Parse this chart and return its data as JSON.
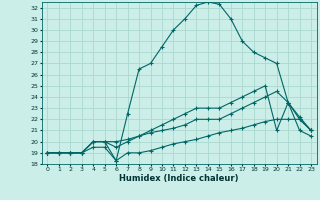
{
  "xlabel": "Humidex (Indice chaleur)",
  "background_color": "#cceee8",
  "grid_color": "#aad8d0",
  "line_color": "#006666",
  "xlim": [
    -0.5,
    23.5
  ],
  "ylim": [
    18,
    32.5
  ],
  "xticks": [
    0,
    1,
    2,
    3,
    4,
    5,
    6,
    7,
    8,
    9,
    10,
    11,
    12,
    13,
    14,
    15,
    16,
    17,
    18,
    19,
    20,
    21,
    22,
    23
  ],
  "yticks": [
    18,
    19,
    20,
    21,
    22,
    23,
    24,
    25,
    26,
    27,
    28,
    29,
    30,
    31,
    32
  ],
  "line1_x": [
    0,
    1,
    2,
    3,
    4,
    5,
    6,
    7,
    8,
    9,
    10,
    11,
    12,
    13,
    14,
    15,
    16,
    17,
    18,
    19,
    20,
    21,
    22,
    23
  ],
  "line1_y": [
    19,
    19,
    19,
    19,
    20,
    20,
    18.3,
    22.5,
    26.5,
    27,
    28.5,
    30,
    31,
    32.2,
    32.5,
    32.3,
    31,
    29,
    28,
    27.5,
    27,
    23.5,
    21,
    20.5
  ],
  "line2_x": [
    0,
    1,
    2,
    3,
    4,
    5,
    6,
    7,
    8,
    9,
    10,
    11,
    12,
    13,
    14,
    15,
    16,
    17,
    18,
    19,
    20,
    21,
    22,
    23
  ],
  "line2_y": [
    19,
    19,
    19,
    19,
    20,
    20,
    19.5,
    20,
    20.5,
    21,
    21.5,
    22,
    22.5,
    23,
    23,
    23,
    23.5,
    24,
    24.5,
    25,
    21,
    23.5,
    22.2,
    21
  ],
  "line3_x": [
    0,
    1,
    2,
    3,
    4,
    5,
    6,
    7,
    8,
    9,
    10,
    11,
    12,
    13,
    14,
    15,
    16,
    17,
    18,
    19,
    20,
    21,
    22,
    23
  ],
  "line3_y": [
    19,
    19,
    19,
    19,
    20,
    20,
    20,
    20.2,
    20.5,
    20.8,
    21,
    21.2,
    21.5,
    22,
    22,
    22,
    22.5,
    23,
    23.5,
    24,
    24.5,
    23.5,
    22,
    21
  ],
  "line4_x": [
    0,
    1,
    2,
    3,
    4,
    5,
    6,
    7,
    8,
    9,
    10,
    11,
    12,
    13,
    14,
    15,
    16,
    17,
    18,
    19,
    20,
    21,
    22,
    23
  ],
  "line4_y": [
    19,
    19,
    19,
    19,
    19.5,
    19.5,
    18.3,
    19,
    19,
    19.2,
    19.5,
    19.8,
    20,
    20.2,
    20.5,
    20.8,
    21,
    21.2,
    21.5,
    21.8,
    22,
    22,
    22,
    21
  ]
}
